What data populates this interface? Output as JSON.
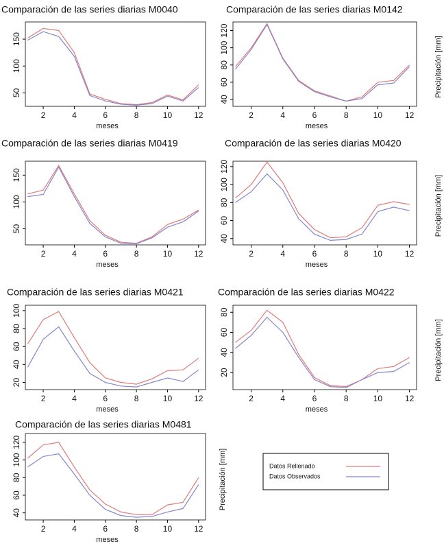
{
  "chart_data": [
    {
      "type": "line",
      "title": "Comparación de las series diarias M0040",
      "xlabel": "meses",
      "x": [
        1,
        2,
        3,
        4,
        5,
        6,
        7,
        8,
        9,
        10,
        11,
        12
      ],
      "xlim": [
        0.85,
        12.45
      ],
      "xticks": [
        2,
        4,
        6,
        8,
        10,
        12
      ],
      "ylim": [
        25,
        182
      ],
      "yticks": [
        50,
        100,
        150
      ],
      "series": [
        {
          "name": "Datos Rellenado",
          "color": "#e07a7a",
          "values": [
            152,
            170,
            166,
            125,
            48,
            38,
            30,
            28,
            32,
            46,
            37,
            65
          ]
        },
        {
          "name": "Datos Observados",
          "color": "#8585cc",
          "values": [
            148,
            164,
            155,
            118,
            45,
            35,
            29,
            27,
            30,
            44,
            35,
            60
          ]
        }
      ]
    },
    {
      "type": "line",
      "title": "Comparación de las series diarias M0142",
      "xlabel": "meses",
      "ylabel": "Precipitación [mm]",
      "x": [
        1,
        2,
        3,
        4,
        5,
        6,
        7,
        8,
        9,
        10,
        11,
        12
      ],
      "xlim": [
        0.85,
        12.45
      ],
      "xticks": [
        2,
        4,
        6,
        8,
        10,
        12
      ],
      "ylim": [
        32,
        130
      ],
      "yticks": [
        40,
        60,
        80,
        100,
        120
      ],
      "series": [
        {
          "name": "Datos Rellenado",
          "color": "#e07a7a",
          "values": [
            78,
            100,
            128,
            88,
            62,
            50,
            44,
            38,
            43,
            60,
            62,
            80
          ]
        },
        {
          "name": "Datos Observados",
          "color": "#8585cc",
          "values": [
            75,
            98,
            127,
            87,
            61,
            49,
            43,
            38,
            41,
            57,
            59,
            78
          ]
        }
      ]
    },
    {
      "type": "line",
      "title": "Comparación de las series diarias M0419",
      "xlabel": "meses",
      "x": [
        1,
        2,
        3,
        4,
        5,
        6,
        7,
        8,
        9,
        10,
        11,
        12
      ],
      "xlim": [
        0.85,
        12.45
      ],
      "xticks": [
        2,
        4,
        6,
        8,
        10,
        12
      ],
      "ylim": [
        20,
        176
      ],
      "yticks": [
        50,
        100,
        150
      ],
      "series": [
        {
          "name": "Datos Rellenado",
          "color": "#e07a7a",
          "values": [
            115,
            122,
            168,
            115,
            65,
            38,
            25,
            23,
            35,
            58,
            68,
            85
          ]
        },
        {
          "name": "Datos Observados",
          "color": "#8585cc",
          "values": [
            110,
            114,
            165,
            110,
            60,
            35,
            23,
            22,
            33,
            53,
            63,
            83
          ]
        }
      ]
    },
    {
      "type": "line",
      "title": "Comparación de las series diarias M0420",
      "xlabel": "meses",
      "ylabel": "Precipitación [mm]",
      "x": [
        1,
        2,
        3,
        4,
        5,
        6,
        7,
        8,
        9,
        10,
        11,
        12
      ],
      "xlim": [
        0.85,
        12.45
      ],
      "xticks": [
        2,
        4,
        6,
        8,
        10,
        12
      ],
      "ylim": [
        33,
        126
      ],
      "yticks": [
        40,
        60,
        80,
        100,
        120
      ],
      "series": [
        {
          "name": "Datos Rellenado",
          "color": "#e07a7a",
          "values": [
            85,
            100,
            125,
            102,
            68,
            50,
            41,
            42,
            52,
            77,
            81,
            78
          ]
        },
        {
          "name": "Datos Observados",
          "color": "#8585cc",
          "values": [
            80,
            92,
            112,
            94,
            62,
            45,
            38,
            39,
            45,
            70,
            75,
            71
          ]
        }
      ]
    },
    {
      "type": "line",
      "title": "Comparación de las series diarias M0421",
      "xlabel": "meses",
      "x": [
        1,
        2,
        3,
        4,
        5,
        6,
        7,
        8,
        9,
        10,
        11,
        12
      ],
      "xlim": [
        0.85,
        12.45
      ],
      "xticks": [
        2,
        4,
        6,
        8,
        10,
        12
      ],
      "ylim": [
        12,
        106
      ],
      "yticks": [
        20,
        40,
        60,
        80,
        100
      ],
      "series": [
        {
          "name": "Datos Rellenado",
          "color": "#e07a7a",
          "values": [
            63,
            90,
            99,
            70,
            42,
            25,
            20,
            18,
            24,
            33,
            34,
            47
          ]
        },
        {
          "name": "Datos Observados",
          "color": "#8585cc",
          "values": [
            37,
            68,
            82,
            55,
            30,
            20,
            16,
            15,
            20,
            25,
            21,
            34
          ]
        }
      ]
    },
    {
      "type": "line",
      "title": "Comparación de las series diarias M0422",
      "xlabel": "meses",
      "ylabel": "Precipitación [mm]",
      "x": [
        1,
        2,
        3,
        4,
        5,
        6,
        7,
        8,
        9,
        10,
        11,
        12
      ],
      "xlim": [
        0.85,
        12.45
      ],
      "xticks": [
        2,
        4,
        6,
        8,
        10,
        12
      ],
      "ylim": [
        3,
        87
      ],
      "yticks": [
        20,
        40,
        60,
        80
      ],
      "series": [
        {
          "name": "Datos Rellenado",
          "color": "#e07a7a",
          "values": [
            50,
            62,
            82,
            70,
            38,
            15,
            7,
            6,
            13,
            24,
            26,
            35
          ]
        },
        {
          "name": "Datos Observados",
          "color": "#8585cc",
          "values": [
            44,
            57,
            75,
            60,
            35,
            13,
            6,
            5,
            13,
            20,
            21,
            30
          ]
        }
      ]
    },
    {
      "type": "line",
      "title": "Comparación de las series diarias M0481",
      "xlabel": "meses",
      "ylabel": "Precipitación [mm]",
      "x": [
        1,
        2,
        3,
        4,
        5,
        6,
        7,
        8,
        9,
        10,
        11,
        12
      ],
      "xlim": [
        0.85,
        12.45
      ],
      "xticks": [
        2,
        4,
        6,
        8,
        10,
        12
      ],
      "ylim": [
        32,
        130
      ],
      "yticks": [
        40,
        60,
        80,
        100,
        120
      ],
      "series": [
        {
          "name": "Datos Rellenado",
          "color": "#e07a7a",
          "values": [
            102,
            117,
            120,
            92,
            66,
            50,
            41,
            38,
            38,
            49,
            52,
            80
          ]
        },
        {
          "name": "Datos Observados",
          "color": "#8585cc",
          "values": [
            92,
            104,
            107,
            84,
            60,
            44,
            37,
            35,
            36,
            41,
            45,
            72
          ]
        }
      ]
    }
  ]
}
